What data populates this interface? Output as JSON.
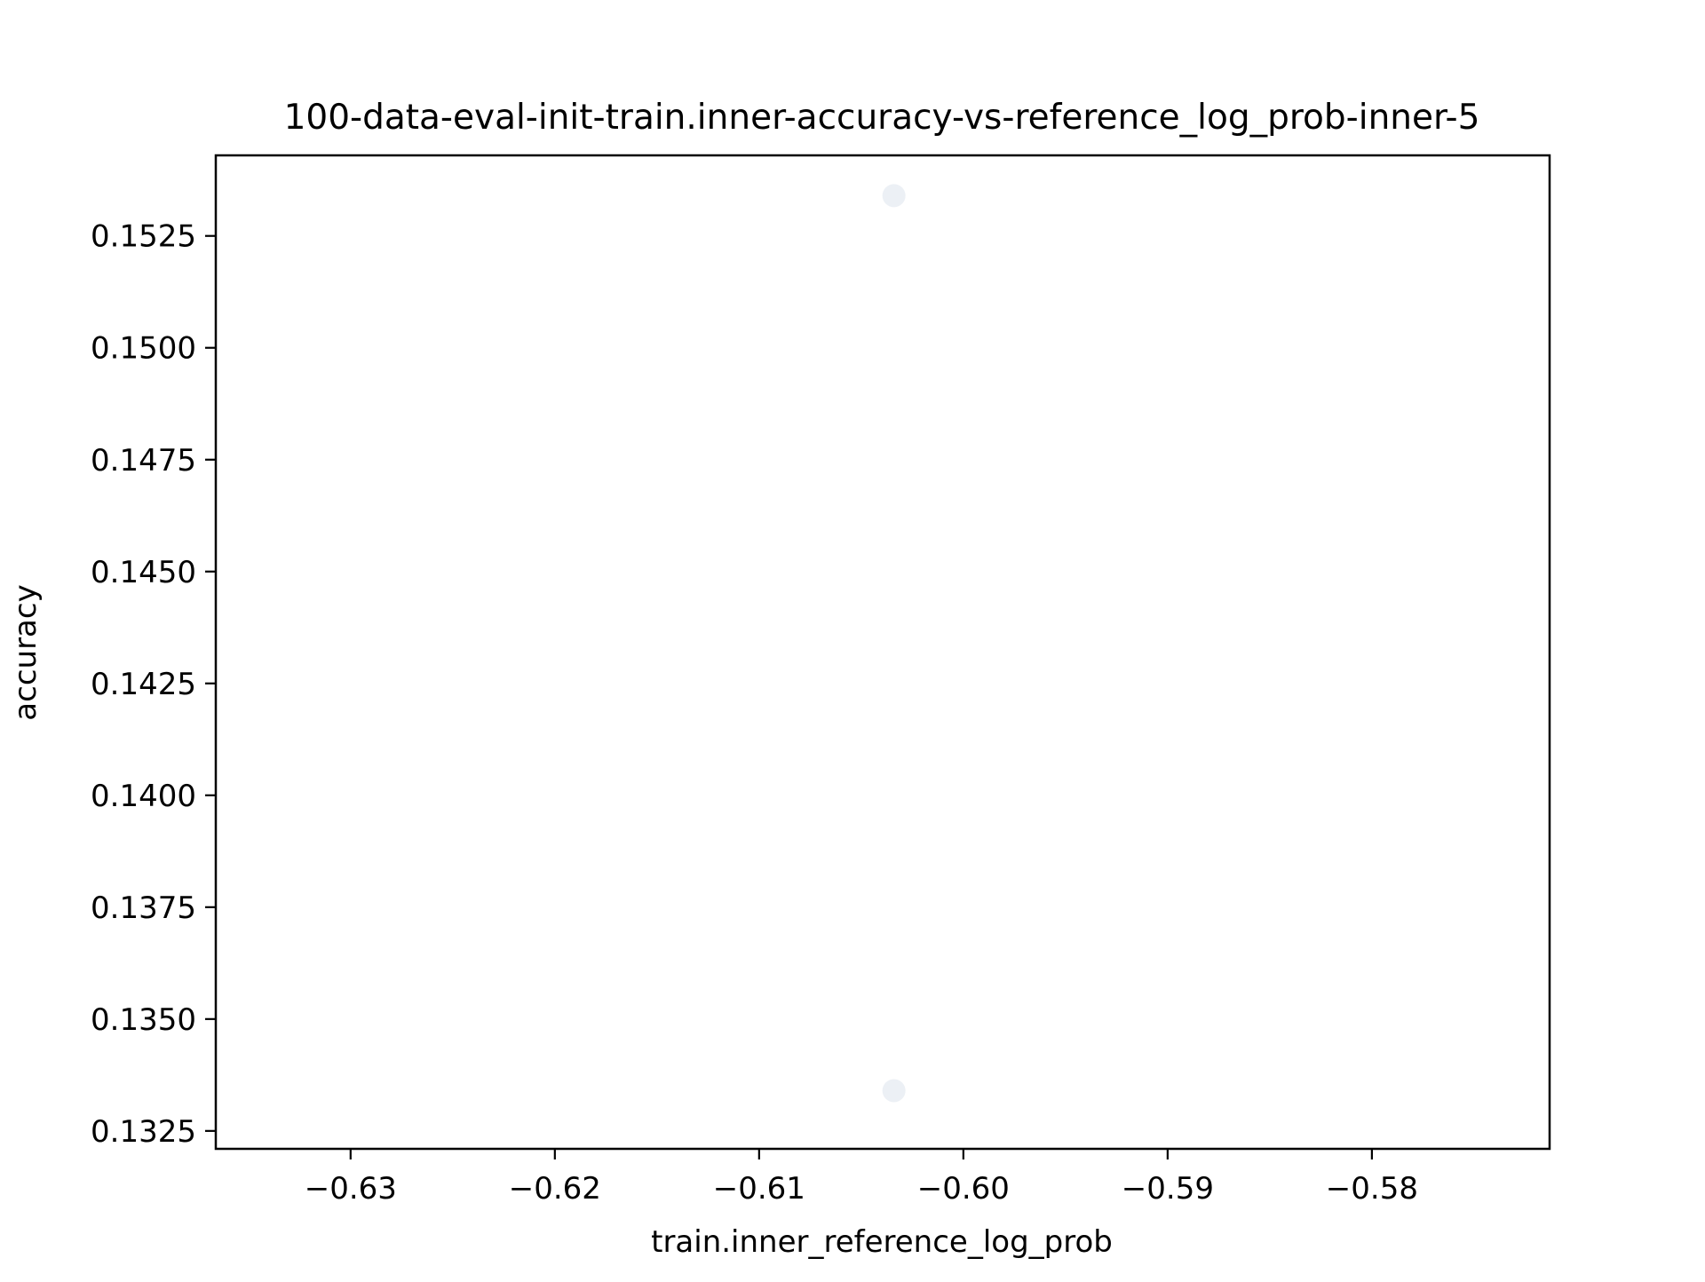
{
  "chart_data": {
    "type": "scatter",
    "title": "100-data-eval-init-train.inner-accuracy-vs-reference_log_prob-inner-5",
    "xlabel": "train.inner_reference_log_prob",
    "ylabel": "accuracy",
    "xlim": [
      -0.6366,
      -0.5713
    ],
    "ylim": [
      0.1321,
      0.1543
    ],
    "x_ticks": [
      -0.63,
      -0.62,
      -0.61,
      -0.6,
      -0.59,
      -0.58
    ],
    "x_tick_labels": [
      "−0.63",
      "−0.62",
      "−0.61",
      "−0.60",
      "−0.59",
      "−0.58"
    ],
    "y_ticks": [
      0.1325,
      0.135,
      0.1375,
      0.14,
      0.1425,
      0.145,
      0.1475,
      0.15,
      0.1525
    ],
    "y_tick_labels": [
      "0.1325",
      "0.1350",
      "0.1375",
      "0.1400",
      "0.1425",
      "0.1450",
      "0.1475",
      "0.1500",
      "0.1525"
    ],
    "grid": false,
    "series": [
      {
        "color": "#e9edf3",
        "points": [
          {
            "x": -0.6034,
            "y": 0.1534
          },
          {
            "x": -0.6034,
            "y": 0.1334
          }
        ]
      }
    ]
  }
}
